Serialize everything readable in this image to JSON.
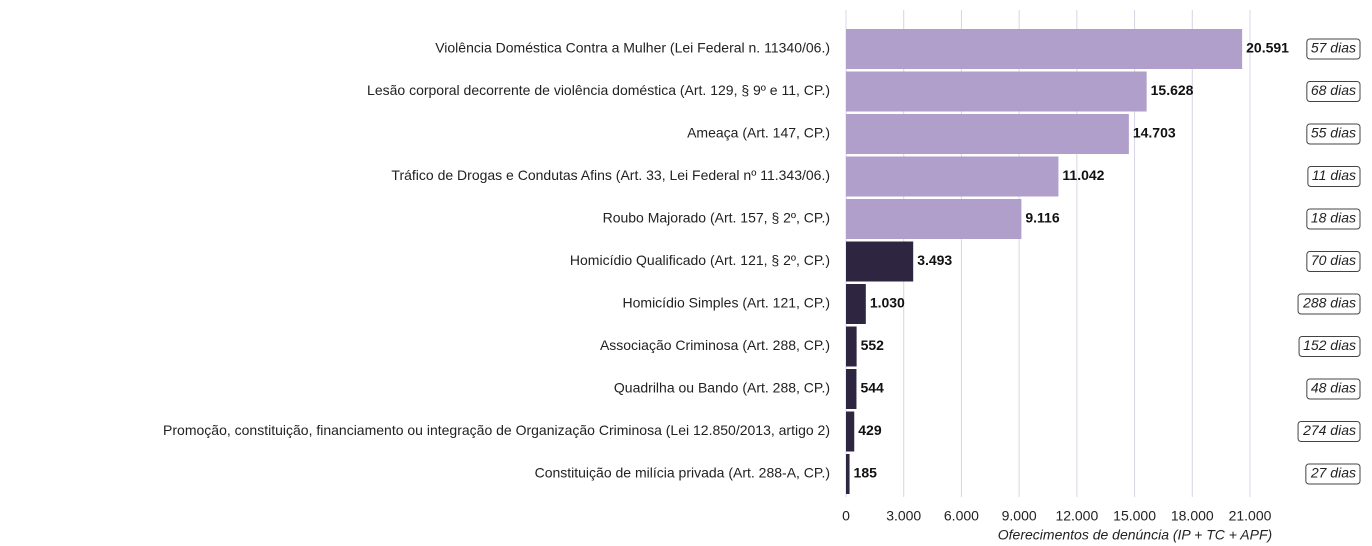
{
  "chart_data": {
    "type": "bar",
    "orientation": "horizontal",
    "x_label": "Oferecimentos de denúncia (IP + TC + APF)",
    "categories": [
      "Violência Doméstica Contra a Mulher  (Lei Federal n. 11340/06.)",
      "Lesão corporal decorrente de violência doméstica (Art. 129, § 9º e 11, CP.)",
      "Ameaça (Art. 147, CP.)",
      "Tráfico de Drogas e Condutas Afins (Art. 33, Lei Federal nº 11.343/06.)",
      "Roubo Majorado (Art. 157, § 2º, CP.)",
      "Homicídio Qualificado (Art. 121, § 2º, CP.)",
      "Homicídio Simples (Art. 121, CP.)",
      "Associação Criminosa (Art. 288, CP.)",
      "Quadrilha ou Bando (Art. 288, CP.)",
      "Promoção, constituição, financiamento ou integração de Organização Criminosa (Lei 12.850/2013, artigo 2)",
      "Constituição de milícia privada (Art. 288-A, CP.)"
    ],
    "values": [
      20591,
      15628,
      14703,
      11042,
      9116,
      3493,
      1030,
      552,
      544,
      429,
      185
    ],
    "value_labels": [
      "20.591",
      "15.628",
      "14.703",
      "11.042",
      "9.116",
      "3.493",
      "1.030",
      "552",
      "544",
      "429",
      "185"
    ],
    "durations": [
      "57 dias",
      "68 dias",
      "55 dias",
      "11 dias",
      "18 dias",
      "70 dias",
      "288 dias",
      "152 dias",
      "48 dias",
      "274 dias",
      "27 dias"
    ],
    "colors": [
      "#b09fca",
      "#b09fca",
      "#b09fca",
      "#b09fca",
      "#b09fca",
      "#2e2640",
      "#2e2640",
      "#2e2640",
      "#2e2640",
      "#2e2640",
      "#2e2640"
    ],
    "xlim": [
      0,
      21000
    ],
    "xticks": [
      0,
      {
        "value": 3000,
        "label": "3.000"
      },
      {
        "value": 6000,
        "label": "6.000"
      },
      {
        "value": 9000,
        "label": "9.000"
      },
      {
        "value": 12000,
        "label": "12.000"
      },
      {
        "value": 15000,
        "label": "15.000"
      },
      {
        "value": 18000,
        "label": "18.000"
      },
      {
        "value": 21000,
        "label": "21.000"
      }
    ],
    "grid": true
  }
}
